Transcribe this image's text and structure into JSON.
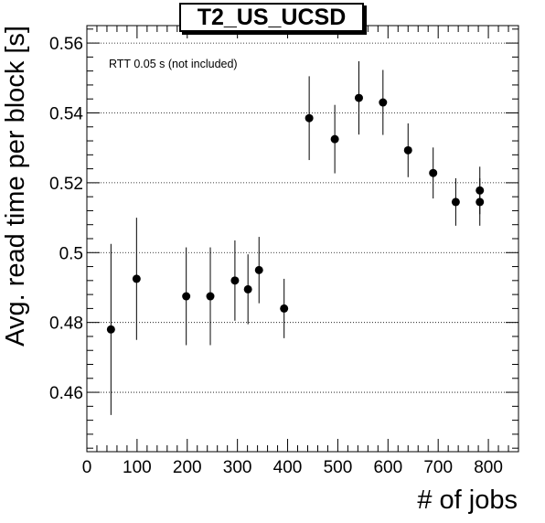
{
  "chart_data": {
    "type": "scatter",
    "title": "T2_US_UCSD",
    "xlabel": "# of jobs",
    "ylabel": "Avg. read time per block [s]",
    "annotation": "RTT 0.05 s (not included)",
    "xlim": [
      0,
      860
    ],
    "ylim": [
      0.443,
      0.565
    ],
    "x_ticks": [
      0,
      100,
      200,
      300,
      400,
      500,
      600,
      700,
      800
    ],
    "y_ticks": [
      0.46,
      0.48,
      0.5,
      0.52,
      0.54,
      0.56
    ],
    "y_tick_labels": [
      "0.46",
      "0.48",
      "0.5",
      "0.52",
      "0.54",
      "0.56"
    ],
    "grid": "horizontal dotted at major y ticks",
    "points": [
      {
        "x": 48,
        "y": 0.478,
        "err": 0.0245
      },
      {
        "x": 99,
        "y": 0.4925,
        "err": 0.0175
      },
      {
        "x": 198,
        "y": 0.4875,
        "err": 0.014
      },
      {
        "x": 246,
        "y": 0.4875,
        "err": 0.014
      },
      {
        "x": 295,
        "y": 0.492,
        "err": 0.0115
      },
      {
        "x": 321,
        "y": 0.4895,
        "err": 0.01
      },
      {
        "x": 343,
        "y": 0.495,
        "err": 0.0095
      },
      {
        "x": 393,
        "y": 0.484,
        "err": 0.0085
      },
      {
        "x": 443,
        "y": 0.5385,
        "err": 0.012
      },
      {
        "x": 494,
        "y": 0.5325,
        "err": 0.0098
      },
      {
        "x": 542,
        "y": 0.5443,
        "err": 0.0105
      },
      {
        "x": 590,
        "y": 0.543,
        "err": 0.0093
      },
      {
        "x": 640,
        "y": 0.5293,
        "err": 0.0077
      },
      {
        "x": 690,
        "y": 0.5228,
        "err": 0.0073
      },
      {
        "x": 735,
        "y": 0.5145,
        "err": 0.0068
      },
      {
        "x": 783,
        "y": 0.5145,
        "err": 0.0068
      },
      {
        "x": 783,
        "y": 0.5178,
        "err": 0.0068
      }
    ],
    "colors": {
      "marker": "#000000",
      "axis": "#000000",
      "grid": "#000000"
    }
  }
}
